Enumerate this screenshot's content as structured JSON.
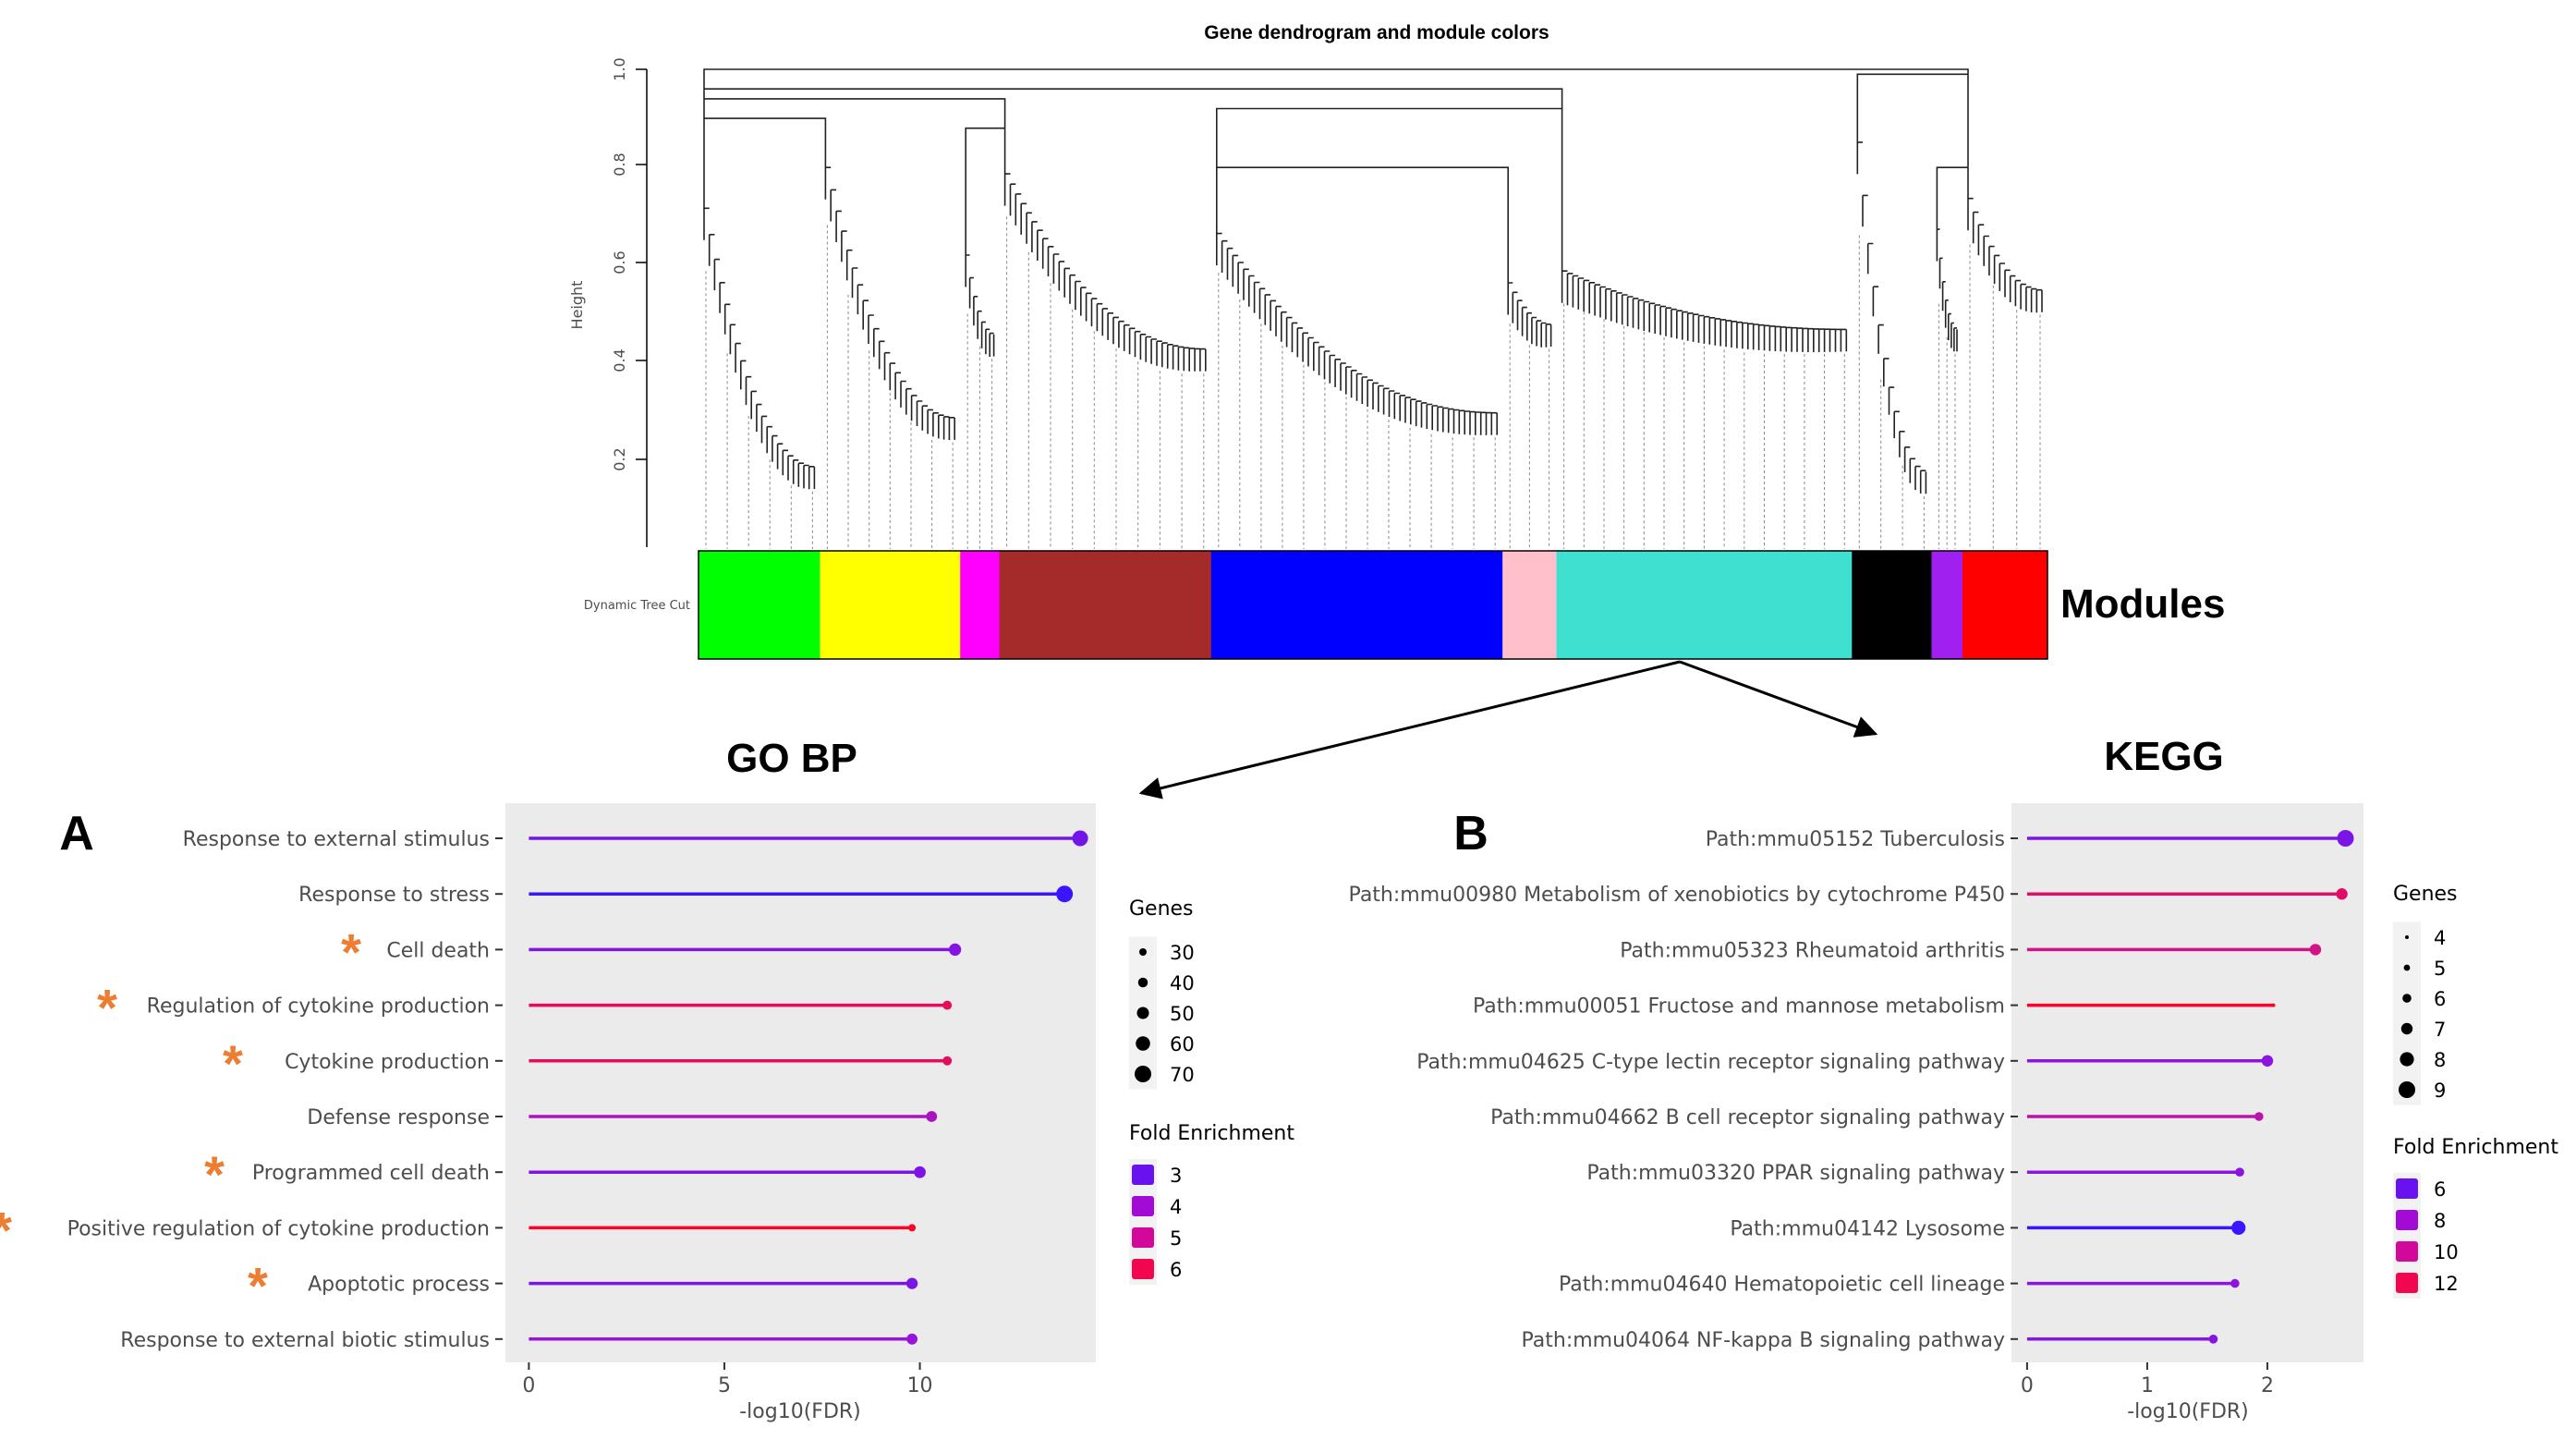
{
  "dendrogram": {
    "title": "Gene dendrogram and module colors",
    "ylabel": "Height",
    "yticks": [
      "0.2",
      "0.4",
      "0.6",
      "0.8",
      "1.0"
    ],
    "row_label": "Dynamic Tree Cut",
    "modules_label": "Modules",
    "modules": [
      {
        "color": "#00ff00",
        "fraction": 0.09
      },
      {
        "color": "#ffff00",
        "fraction": 0.104
      },
      {
        "color": "#ff00ff",
        "fraction": 0.029
      },
      {
        "color": "#a52a2a",
        "fraction": 0.157
      },
      {
        "color": "#0000ff",
        "fraction": 0.216
      },
      {
        "color": "#ffc0cb",
        "fraction": 0.04
      },
      {
        "color": "#40e0d0",
        "fraction": 0.219
      },
      {
        "color": "#000000",
        "fraction": 0.059
      },
      {
        "color": "#a020f0",
        "fraction": 0.023
      },
      {
        "color": "#ff0000",
        "fraction": 0.063
      }
    ]
  },
  "panel_titles": {
    "go": "GO BP",
    "kegg": "KEGG"
  },
  "panel_letters": {
    "a": "A",
    "b": "B"
  },
  "chart_data": [
    {
      "type": "lollipop",
      "panel": "A",
      "title": "GO BP",
      "xlabel": "-log10(FDR)",
      "xlim": [
        -0.6,
        14.5
      ],
      "xticks": [
        0,
        5,
        10
      ],
      "categories": [
        "Response to external stimulus",
        "Response to stress",
        "Cell death",
        "Regulation of cytokine production",
        "Cytokine production",
        "Defense response",
        "Programmed cell death",
        "Positive regulation of cytokine production",
        "Apoptotic process",
        "Response to external biotic stimulus"
      ],
      "values": [
        14.1,
        13.7,
        10.9,
        10.7,
        10.7,
        10.3,
        10.0,
        9.8,
        9.8,
        9.8
      ],
      "genes": [
        68,
        72,
        52,
        38,
        38,
        46,
        50,
        30,
        48,
        46
      ],
      "fold_enrichment": [
        3.6,
        3.0,
        3.8,
        5.4,
        5.4,
        4.3,
        3.7,
        6.0,
        3.7,
        4.0
      ],
      "starred": [
        false,
        false,
        true,
        true,
        true,
        false,
        true,
        true,
        true,
        false
      ],
      "legend": {
        "size_title": "Genes",
        "size_values": [
          30,
          40,
          50,
          60,
          70
        ],
        "color_title": "Fold Enrichment",
        "color_values": [
          3,
          4,
          5,
          6
        ],
        "color_swatches": [
          "#6a11f0",
          "#a20ad6",
          "#d2089a",
          "#f2064f"
        ]
      }
    },
    {
      "type": "lollipop",
      "panel": "B",
      "title": "KEGG",
      "xlabel": "-log10(FDR)",
      "xlim": [
        -0.13,
        2.8
      ],
      "xticks": [
        0,
        1,
        2
      ],
      "categories": [
        "Path:mmu05152 Tuberculosis",
        "Path:mmu00980 Metabolism of xenobiotics by cytochrome P450",
        "Path:mmu05323 Rheumatoid arthritis",
        "Path:mmu00051 Fructose and mannose metabolism",
        "Path:mmu04625 C-type lectin receptor signaling pathway",
        "Path:mmu04662 B cell receptor signaling pathway",
        "Path:mmu03320 PPAR signaling pathway",
        "Path:mmu04142 Lysosome",
        "Path:mmu04640 Hematopoietic cell lineage",
        "Path:mmu04064 NF-kappa B signaling pathway"
      ],
      "values": [
        2.65,
        2.62,
        2.4,
        2.05,
        2.0,
        1.93,
        1.77,
        1.76,
        1.73,
        1.55
      ],
      "genes": [
        9,
        7,
        7,
        4,
        7,
        6,
        6,
        8,
        6,
        6
      ],
      "fold_enrichment": [
        6.5,
        11,
        10,
        13,
        7,
        9,
        7,
        4.5,
        7,
        6.8
      ],
      "starred": [
        false,
        false,
        false,
        false,
        false,
        false,
        false,
        false,
        false,
        false
      ],
      "legend": {
        "size_title": "Genes",
        "size_values": [
          4,
          5,
          6,
          7,
          8,
          9
        ],
        "color_title": "Fold Enrichment",
        "color_values": [
          6,
          8,
          10,
          12
        ],
        "color_swatches": [
          "#6a11f0",
          "#a20ad6",
          "#d2089a",
          "#f2064f"
        ]
      }
    }
  ]
}
